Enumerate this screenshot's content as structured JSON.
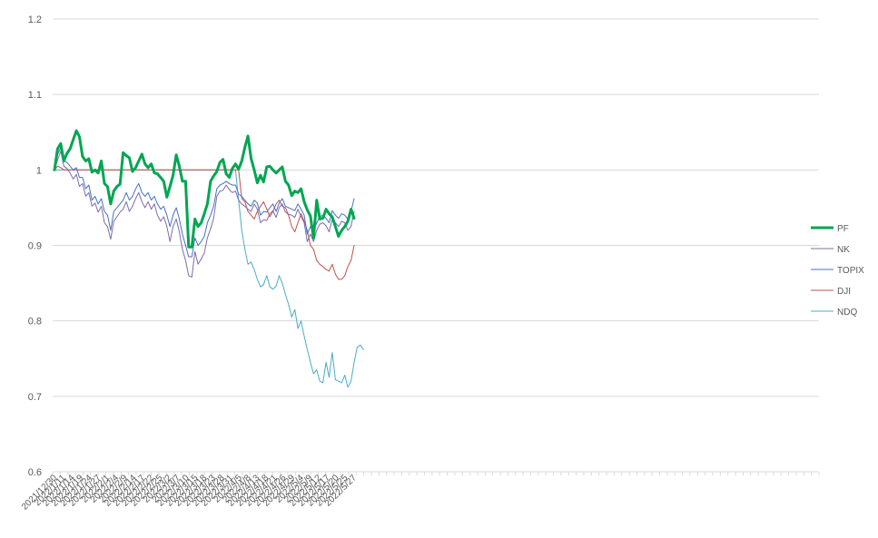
{
  "chart_data": {
    "type": "line",
    "ylim": [
      0.6,
      1.2
    ],
    "y_ticks": [
      "0.6",
      "0.7",
      "0.8",
      "0.9",
      "1",
      "1.1",
      "1.2"
    ],
    "y_tick_values": [
      0.6,
      0.7,
      0.8,
      0.9,
      1.0,
      1.1,
      1.2
    ],
    "grid": "horizontal",
    "legend_position": "right",
    "x_tick_labels": [
      "2021/12/30",
      "2022/1/11",
      "2022/1/14",
      "2022/1/19",
      "2022/1/24",
      "2022/1/27",
      "2022/2/1",
      "2022/2/4",
      "2022/2/9",
      "2022/2/14",
      "2022/2/17",
      "2022/2/22",
      "2022/2/25",
      "2022/3/2",
      "2022/3/7",
      "2022/3/10",
      "2022/3/15",
      "2022/3/18",
      "2022/3/23",
      "2022/3/28",
      "2022/3/31",
      "2022/4/5",
      "2022/4/8",
      "2022/4/13",
      "2022/4/18",
      "2022/4/21",
      "2022/4/26",
      "2022/4/29",
      "2022/5/4",
      "2022/5/9",
      "2022/5/12",
      "2022/5/17",
      "2022/5/20",
      "2022/5/25",
      "2022/5/27"
    ],
    "x_tick_labels_visible": [
      "2021/12/30",
      "2022/1/11",
      "2022/1/14",
      "2022/1/19",
      "2022/1/24",
      "2022/1/27",
      "2022/2/1",
      "2022/2/4",
      "2022/2/9",
      "2022/2/14",
      "2022/2/17",
      "2022/2/22",
      "2022/2/25",
      "2022/3/2",
      "2022/3/7",
      "2022/3/10",
      "2022/3/15",
      "2022/3/18",
      "2022/3/23",
      "2022/3/28",
      "2022/3/31",
      "2022/4/5",
      "2022/4/8",
      "2022/4/13",
      "2022/4/18",
      "2022/4/21",
      "2022/4/26",
      "2022/4/29",
      "2022/5/4",
      "2022/5/9",
      "2022/5/12",
      "2022/5/17",
      "2022/5/20",
      "2022/5/25",
      "2022/5/27"
    ],
    "total_category_slots": 101,
    "series": [
      {
        "name": "PF",
        "color": "#00A651",
        "bold": true,
        "values": [
          1.0,
          1.028,
          1.035,
          1.012,
          1.022,
          1.028,
          1.04,
          1.052,
          1.044,
          1.018,
          1.012,
          1.015,
          0.997,
          1.0,
          0.996,
          1.012,
          0.982,
          0.978,
          0.955,
          0.972,
          0.978,
          0.981,
          1.023,
          1.019,
          1.016,
          0.998,
          1.003,
          1.012,
          1.021,
          1.008,
          1.003,
          1.008,
          0.996,
          0.995,
          0.99,
          0.985,
          0.964,
          0.978,
          0.993,
          1.02,
          1.005,
          0.985,
          0.985,
          0.898,
          0.898,
          0.935,
          0.925,
          0.93,
          0.942,
          0.955,
          0.985,
          0.992,
          0.998,
          1.01,
          1.014,
          0.995,
          0.99,
          1.002,
          1.008,
          1.001,
          1.012,
          1.03,
          1.045,
          1.015,
          1.0,
          0.983,
          0.993,
          0.984,
          1.004,
          1.005,
          1.0,
          0.996,
          1.0,
          1.004,
          0.985,
          0.98,
          0.966,
          0.972,
          0.97,
          0.975,
          0.958,
          0.947,
          0.939,
          0.91,
          0.96,
          0.935,
          0.936,
          0.948,
          0.942,
          0.938,
          0.925,
          0.912,
          0.92,
          0.925,
          0.932,
          0.948,
          0.936
        ]
      },
      {
        "name": "NK",
        "color": "#7E6BA6",
        "bold": false,
        "values": [
          1.0,
          1.013,
          1.025,
          1.005,
          1.002,
          0.996,
          0.988,
          0.994,
          0.978,
          0.982,
          0.965,
          0.97,
          0.952,
          0.956,
          0.944,
          0.952,
          0.93,
          0.925,
          0.908,
          0.932,
          0.938,
          0.944,
          0.948,
          0.958,
          0.945,
          0.952,
          0.962,
          0.97,
          0.958,
          0.95,
          0.958,
          0.948,
          0.955,
          0.94,
          0.932,
          0.938,
          0.925,
          0.905,
          0.925,
          0.935,
          0.918,
          0.895,
          0.88,
          0.86,
          0.858,
          0.892,
          0.875,
          0.882,
          0.89,
          0.91,
          0.922,
          0.936,
          0.965,
          0.972,
          0.973,
          0.98,
          0.974,
          0.97,
          0.972,
          0.96,
          0.955,
          0.952,
          0.948,
          0.945,
          0.955,
          0.948,
          0.93,
          0.934,
          0.933,
          0.942,
          0.946,
          0.937,
          0.95,
          0.955,
          0.944,
          0.941,
          0.94,
          0.937,
          0.948,
          0.938,
          0.93,
          0.905,
          0.915,
          0.905,
          0.92,
          0.928,
          0.93,
          0.926,
          0.918,
          0.935,
          0.93,
          0.925,
          0.932,
          0.93,
          0.92,
          0.925,
          0.945
        ]
      },
      {
        "name": "TOPIX",
        "color": "#4472C4",
        "bold": false,
        "values": [
          1.0,
          1.02,
          1.03,
          1.012,
          1.01,
          1.005,
          1.0,
          1.003,
          0.99,
          0.99,
          0.975,
          0.98,
          0.96,
          0.965,
          0.955,
          0.962,
          0.945,
          0.94,
          0.92,
          0.945,
          0.95,
          0.955,
          0.96,
          0.97,
          0.96,
          0.965,
          0.975,
          0.982,
          0.97,
          0.965,
          0.97,
          0.96,
          0.965,
          0.955,
          0.948,
          0.952,
          0.94,
          0.925,
          0.94,
          0.95,
          0.935,
          0.915,
          0.9,
          0.885,
          0.885,
          0.91,
          0.9,
          0.905,
          0.912,
          0.93,
          0.94,
          0.952,
          0.975,
          0.98,
          0.982,
          0.985,
          0.982,
          0.98,
          0.98,
          0.968,
          0.965,
          0.96,
          0.955,
          0.952,
          0.96,
          0.956,
          0.94,
          0.945,
          0.944,
          0.95,
          0.955,
          0.945,
          0.956,
          0.962,
          0.952,
          0.95,
          0.948,
          0.946,
          0.955,
          0.948,
          0.94,
          0.915,
          0.925,
          0.918,
          0.93,
          0.938,
          0.94,
          0.936,
          0.93,
          0.946,
          0.94,
          0.936,
          0.942,
          0.94,
          0.935,
          0.945,
          0.962
        ]
      },
      {
        "name": "DJI",
        "color": "#C0504D",
        "bold": false,
        "values": [
          1.0,
          1.005,
          1.003,
          1.0,
          1.0,
          1.0,
          1.0,
          1.0,
          1.0,
          1.0,
          1.0,
          1.0,
          1.0,
          1.0,
          1.0,
          1.0,
          1.0,
          1.0,
          1.0,
          1.0,
          1.0,
          1.0,
          1.0,
          1.0,
          1.0,
          1.0,
          1.0,
          1.0,
          1.0,
          1.0,
          1.0,
          1.0,
          1.0,
          1.0,
          1.0,
          1.0,
          1.0,
          1.0,
          1.0,
          1.0,
          1.0,
          1.0,
          1.0,
          1.0,
          1.0,
          1.0,
          1.0,
          1.0,
          1.0,
          1.0,
          1.0,
          1.0,
          1.0,
          1.0,
          1.0,
          1.0,
          1.0,
          1.0,
          1.0,
          1.0,
          0.962,
          0.958,
          0.945,
          0.94,
          0.935,
          0.945,
          0.952,
          0.958,
          0.948,
          0.938,
          0.945,
          0.955,
          0.96,
          0.952,
          0.95,
          0.94,
          0.925,
          0.918,
          0.93,
          0.942,
          0.932,
          0.92,
          0.9,
          0.895,
          0.88,
          0.875,
          0.872,
          0.868,
          0.866,
          0.875,
          0.862,
          0.855,
          0.855,
          0.86,
          0.872,
          0.88,
          0.9
        ]
      },
      {
        "name": "NDQ",
        "color": "#4BACC6",
        "bold": false,
        "values": [
          1.0,
          1.0,
          1.0,
          1.0,
          1.0,
          1.0,
          1.0,
          1.0,
          1.0,
          1.0,
          1.0,
          1.0,
          1.0,
          1.0,
          1.0,
          1.0,
          1.0,
          1.0,
          1.0,
          1.0,
          1.0,
          1.0,
          1.0,
          1.0,
          1.0,
          1.0,
          1.0,
          1.0,
          1.0,
          1.0,
          1.0,
          1.0,
          1.0,
          1.0,
          1.0,
          1.0,
          1.0,
          1.0,
          1.0,
          1.0,
          1.0,
          1.0,
          1.0,
          1.0,
          1.0,
          1.0,
          1.0,
          1.0,
          1.0,
          1.0,
          1.0,
          1.0,
          1.0,
          1.0,
          1.0,
          1.0,
          1.0,
          1.0,
          1.0,
          0.96,
          0.92,
          0.895,
          0.875,
          0.878,
          0.868,
          0.855,
          0.845,
          0.848,
          0.86,
          0.845,
          0.842,
          0.846,
          0.86,
          0.85,
          0.835,
          0.822,
          0.805,
          0.815,
          0.79,
          0.8,
          0.78,
          0.762,
          0.745,
          0.73,
          0.735,
          0.72,
          0.718,
          0.745,
          0.725,
          0.758,
          0.722,
          0.72,
          0.718,
          0.728,
          0.712,
          0.72,
          0.745,
          0.765,
          0.768,
          0.762
        ]
      }
    ]
  }
}
